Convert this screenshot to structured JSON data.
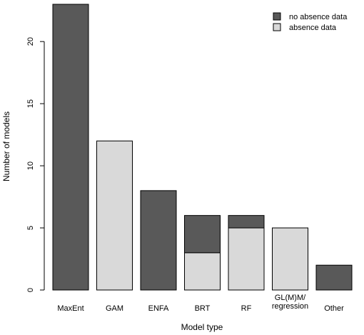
{
  "chart_data": {
    "type": "bar",
    "stacked": true,
    "categories": [
      "MaxEnt",
      "GAM",
      "ENFA",
      "BRT",
      "RF",
      "GL(M)M/\nregression",
      "Other"
    ],
    "series": [
      {
        "name": "absence data",
        "color": "#d9d9d9",
        "values": [
          0,
          12,
          0,
          3,
          5,
          5,
          0
        ]
      },
      {
        "name": "no absence data",
        "color": "#595959",
        "values": [
          23,
          0,
          8,
          3,
          1,
          0,
          2
        ]
      }
    ],
    "title": "",
    "xlabel": "Model type",
    "ylabel": "Number of models",
    "ylim": [
      0,
      23
    ],
    "yticks": [
      0,
      5,
      10,
      15,
      20
    ],
    "grid": false,
    "legend_position": "top-right",
    "legend_order": [
      "no absence data",
      "absence data"
    ]
  }
}
